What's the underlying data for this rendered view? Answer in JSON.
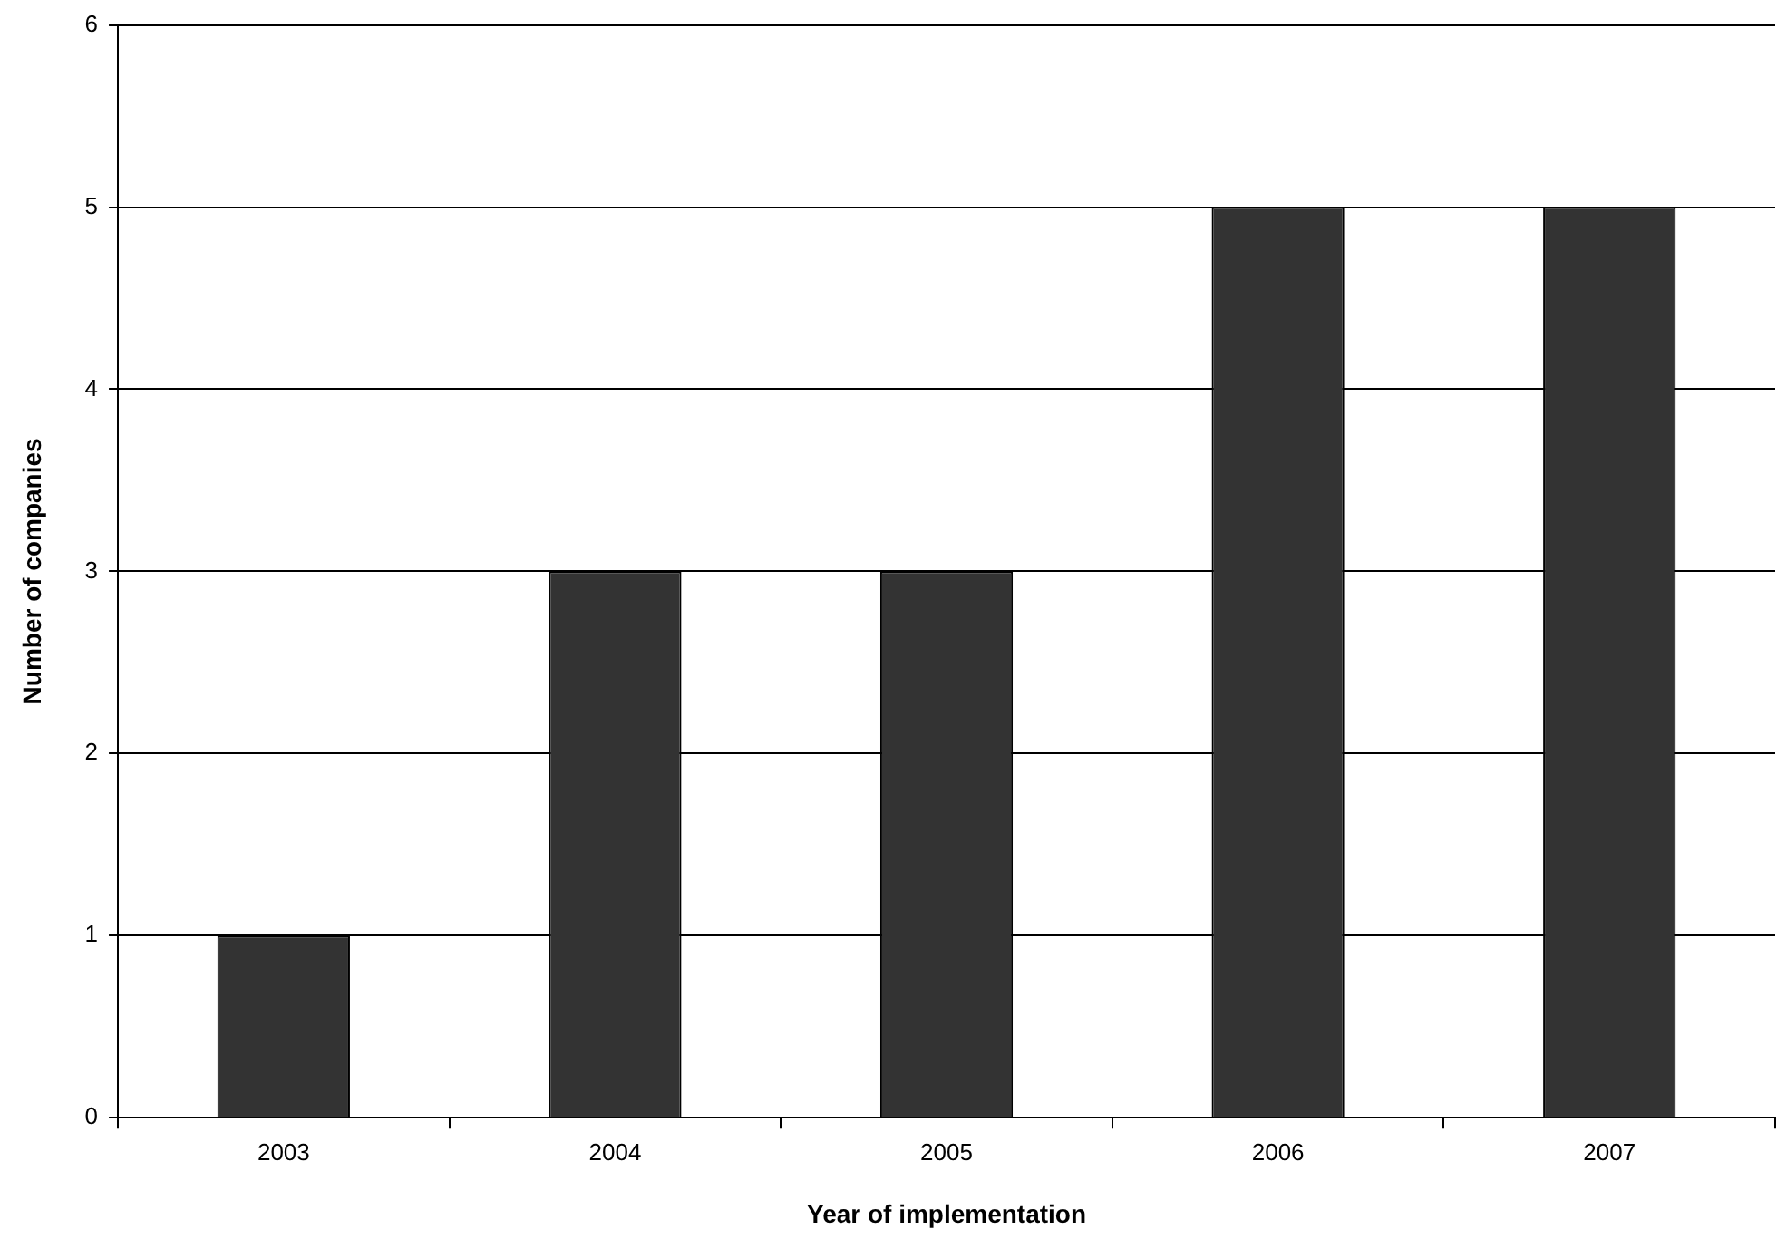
{
  "chart_data": {
    "type": "bar",
    "xlabel": "Year of implementation",
    "ylabel": "Number of companies",
    "categories": [
      "2003",
      "2004",
      "2005",
      "2006",
      "2007"
    ],
    "values": [
      1,
      3,
      3,
      5,
      5
    ],
    "color": "#333333",
    "ylim": [
      0,
      6
    ],
    "yticks": [
      0,
      1,
      2,
      3,
      4,
      5,
      6
    ],
    "grid": "y",
    "legend": false
  }
}
